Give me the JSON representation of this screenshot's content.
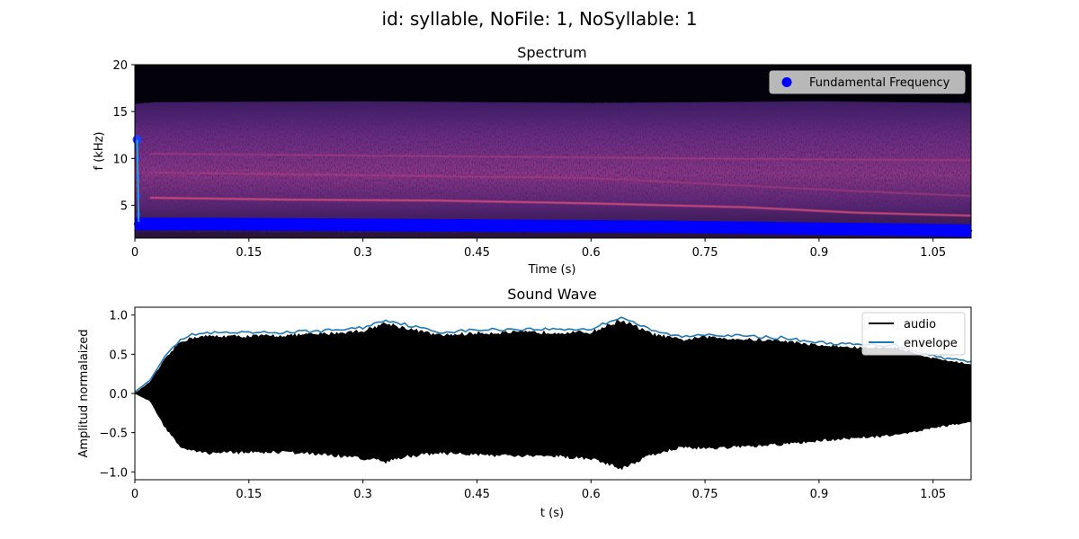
{
  "figure": {
    "title": "id: syllable, NoFile: 1, NoSyllable: 1"
  },
  "chart_data": [
    {
      "type": "heatmap",
      "title": "Spectrum",
      "xlabel": "Time (s)",
      "ylabel": "f (kHz)",
      "xlim": [
        0,
        1.1
      ],
      "ylim": [
        1.5,
        20
      ],
      "x_ticks": [
        "0",
        "0.15",
        "0.3",
        "0.45",
        "0.6",
        "0.75",
        "0.9",
        "1.05"
      ],
      "x_tick_values": [
        0,
        0.15,
        0.3,
        0.45,
        0.6,
        0.75,
        0.9,
        1.05
      ],
      "y_ticks": [
        "5",
        "10",
        "15",
        "20"
      ],
      "y_tick_values": [
        5,
        10,
        15,
        20
      ],
      "colormap": "magma",
      "energy_band_khz": [
        2,
        16
      ],
      "harmonic_tracks_khz": [
        {
          "x": [
            0.02,
            0.2,
            0.4,
            0.6,
            0.8,
            0.95,
            1.1
          ],
          "y": [
            5.8,
            5.6,
            5.5,
            5.2,
            4.8,
            4.2,
            3.9
          ]
        },
        {
          "x": [
            0.02,
            0.2,
            0.4,
            0.6,
            0.8,
            0.95,
            1.1
          ],
          "y": [
            8.5,
            8.3,
            8.1,
            7.9,
            7.1,
            6.5,
            6.0
          ]
        },
        {
          "x": [
            0.02,
            0.3,
            0.6,
            0.9,
            1.1
          ],
          "y": [
            10.5,
            10.3,
            10.1,
            9.9,
            9.8
          ]
        }
      ],
      "legend": {
        "position": "upper right",
        "entries": [
          "Fundamental Frequency"
        ]
      },
      "series": [
        {
          "name": "Fundamental Frequency",
          "color": "#0000ff",
          "x": [
            0,
            0.1,
            0.2,
            0.3,
            0.4,
            0.5,
            0.6,
            0.7,
            0.8,
            0.9,
            1.0,
            1.1
          ],
          "y": [
            3.0,
            3.0,
            2.95,
            2.9,
            2.85,
            2.8,
            2.75,
            2.7,
            2.6,
            2.5,
            2.4,
            2.3
          ]
        }
      ],
      "onset_points": {
        "x": [
          0.003,
          0.003,
          0.004,
          0.004,
          0.005,
          0.005
        ],
        "y": [
          12.0,
          11.2,
          10.0,
          8.0,
          6.0,
          4.0
        ]
      }
    },
    {
      "type": "line",
      "title": "Sound Wave",
      "xlabel": "t (s)",
      "ylabel": "Amplitud normalaized",
      "xlim": [
        0,
        1.1
      ],
      "ylim": [
        -1.1,
        1.1
      ],
      "x_ticks": [
        "0",
        "0.15",
        "0.3",
        "0.45",
        "0.6",
        "0.75",
        "0.9",
        "1.05"
      ],
      "x_tick_values": [
        0,
        0.15,
        0.3,
        0.45,
        0.6,
        0.75,
        0.9,
        1.05
      ],
      "y_ticks": [
        "1.0",
        "0.5",
        "0.0",
        "−0.5",
        "−1.0"
      ],
      "y_tick_values": [
        1.0,
        0.5,
        0.0,
        -0.5,
        -1.0
      ],
      "legend": {
        "position": "upper right",
        "entries": [
          "audio",
          "envelope"
        ]
      },
      "series": [
        {
          "name": "audio",
          "color": "#000000",
          "x": [
            0,
            0.02,
            0.04,
            0.06,
            0.08,
            0.1,
            0.15,
            0.2,
            0.25,
            0.3,
            0.33,
            0.36,
            0.4,
            0.45,
            0.5,
            0.55,
            0.6,
            0.64,
            0.68,
            0.72,
            0.75,
            0.8,
            0.85,
            0.9,
            0.95,
            1.0,
            1.05,
            1.1
          ],
          "upper": [
            0.0,
            0.15,
            0.45,
            0.68,
            0.74,
            0.75,
            0.75,
            0.76,
            0.78,
            0.82,
            0.92,
            0.85,
            0.76,
            0.79,
            0.8,
            0.8,
            0.8,
            0.96,
            0.78,
            0.7,
            0.74,
            0.71,
            0.69,
            0.63,
            0.6,
            0.6,
            0.46,
            0.38
          ],
          "lower": [
            0.0,
            -0.1,
            -0.45,
            -0.7,
            -0.77,
            -0.78,
            -0.77,
            -0.77,
            -0.8,
            -0.85,
            -0.9,
            -0.82,
            -0.78,
            -0.8,
            -0.82,
            -0.82,
            -0.85,
            -0.98,
            -0.8,
            -0.7,
            -0.72,
            -0.7,
            -0.67,
            -0.62,
            -0.58,
            -0.55,
            -0.45,
            -0.37
          ]
        },
        {
          "name": "envelope",
          "color": "#1f77b4",
          "x": [
            0,
            0.02,
            0.04,
            0.06,
            0.08,
            0.1,
            0.15,
            0.2,
            0.25,
            0.3,
            0.33,
            0.36,
            0.4,
            0.45,
            0.5,
            0.55,
            0.6,
            0.64,
            0.68,
            0.72,
            0.75,
            0.8,
            0.85,
            0.9,
            0.95,
            1.0,
            1.05,
            1.1
          ],
          "y": [
            0.02,
            0.17,
            0.48,
            0.7,
            0.76,
            0.77,
            0.77,
            0.78,
            0.8,
            0.84,
            0.94,
            0.87,
            0.78,
            0.81,
            0.82,
            0.82,
            0.82,
            0.98,
            0.8,
            0.72,
            0.76,
            0.73,
            0.71,
            0.65,
            0.62,
            0.62,
            0.48,
            0.4
          ]
        }
      ]
    }
  ]
}
